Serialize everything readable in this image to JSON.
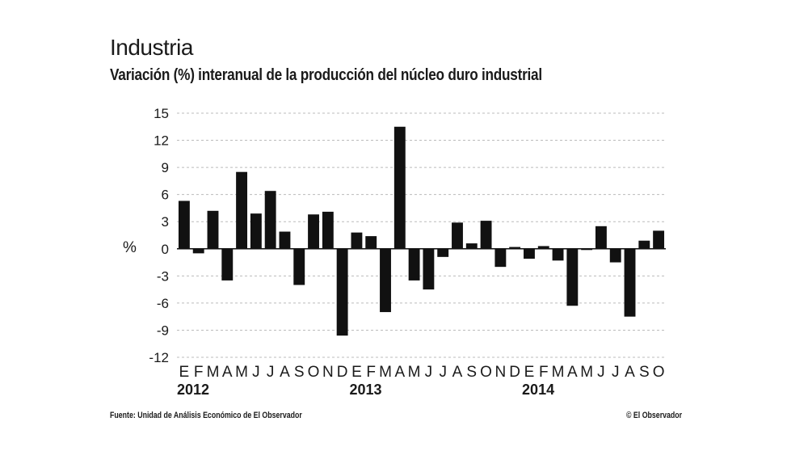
{
  "chart_data": {
    "type": "bar",
    "title": "Industria",
    "subtitle": "Variación (%) interanual de la producción del núcleo duro industrial",
    "ylabel": "%",
    "ylim": [
      -12,
      15
    ],
    "yticks": [
      15,
      12,
      9,
      6,
      3,
      0,
      -3,
      -6,
      -9,
      -12
    ],
    "grid": true,
    "categories": [
      "E",
      "F",
      "M",
      "A",
      "M",
      "J",
      "J",
      "A",
      "S",
      "O",
      "N",
      "D",
      "E",
      "F",
      "M",
      "A",
      "M",
      "J",
      "J",
      "A",
      "S",
      "O",
      "N",
      "D",
      "E",
      "F",
      "M",
      "A",
      "M",
      "J",
      "J",
      "A",
      "S",
      "O"
    ],
    "values": [
      5.3,
      -0.5,
      4.2,
      -3.5,
      8.5,
      3.9,
      6.4,
      1.9,
      -4.0,
      3.8,
      4.1,
      -9.6,
      1.8,
      1.4,
      -7.0,
      13.5,
      -3.5,
      -4.5,
      -0.9,
      2.9,
      0.6,
      3.1,
      -2.0,
      0.2,
      -1.1,
      0.3,
      -1.3,
      -6.3,
      -0.1,
      2.5,
      -1.5,
      -7.5,
      0.9,
      2.0
    ],
    "year_labels": [
      {
        "label": "2012",
        "start_index": 0
      },
      {
        "label": "2013",
        "start_index": 12
      },
      {
        "label": "2014",
        "start_index": 24
      }
    ],
    "bar_color": "#111111",
    "grid_color": "#bbbbbb"
  },
  "footer": {
    "source": "Fuente: Unidad de Análisis Económico de El Observador",
    "copyright": "© El Observador"
  }
}
